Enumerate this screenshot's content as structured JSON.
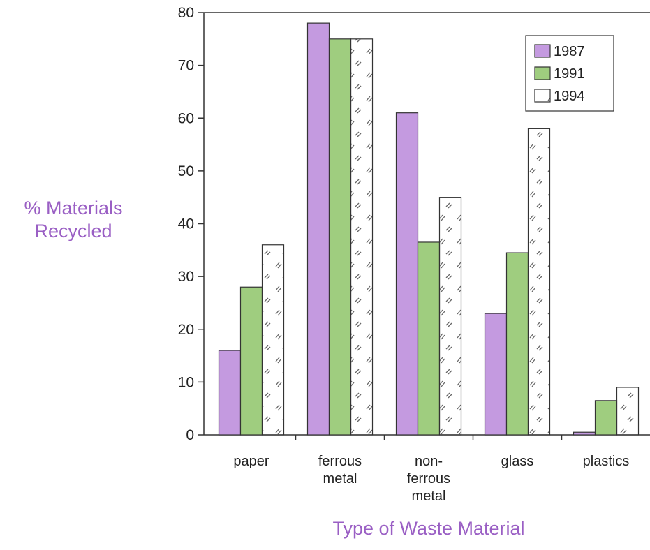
{
  "colors": {
    "series_1987": "#c49ae0",
    "series_1991": "#9fcd7f",
    "series_1994": "#ffffff",
    "axis_title": "#9a5fc4",
    "hatch": "#666666",
    "outline": "#333333"
  },
  "chart_data": {
    "type": "bar",
    "title": "",
    "xlabel": "Type of Waste Material",
    "ylabel_lines": [
      "% Materials",
      "Recycled"
    ],
    "categories": [
      [
        "paper"
      ],
      [
        "ferrous",
        "metal"
      ],
      [
        "non-",
        "ferrous",
        "metal"
      ],
      [
        "glass"
      ],
      [
        "plastics"
      ]
    ],
    "series": [
      {
        "name": "1987",
        "values": [
          16,
          78,
          61,
          23,
          0.5
        ],
        "fill": "solid-purple"
      },
      {
        "name": "1991",
        "values": [
          28,
          75,
          36.5,
          34.5,
          6.5
        ],
        "fill": "solid-green"
      },
      {
        "name": "1994",
        "values": [
          36,
          75,
          45,
          58,
          9
        ],
        "fill": "hatched-white"
      }
    ],
    "ylim": [
      0,
      80
    ],
    "yticks": [
      0,
      10,
      20,
      30,
      40,
      50,
      60,
      70,
      80
    ],
    "grid": false,
    "legend_position": "top-right"
  }
}
